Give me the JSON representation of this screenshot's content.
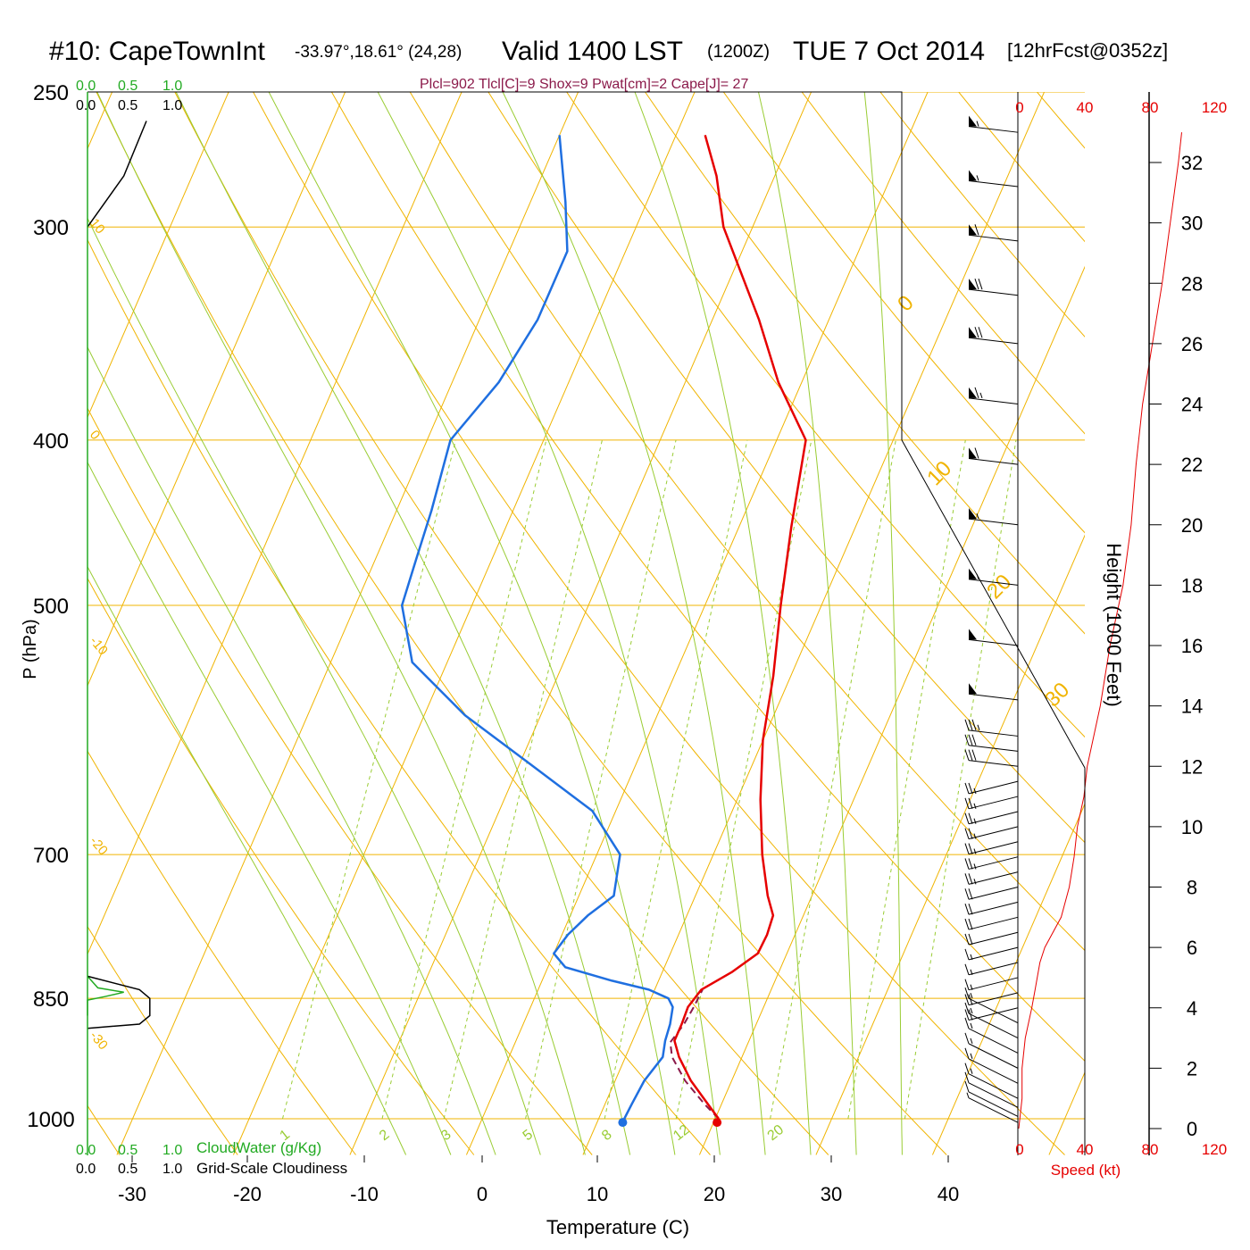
{
  "header": {
    "station": "#10: CapeTownInt",
    "coords": "-33.97°,18.61° (24,28)",
    "valid": "Valid 1400 LST",
    "utc": "(1200Z)",
    "date": "TUE 7 Oct 2014",
    "forecast": "[12hrFcst@0352z]",
    "indices": "Plcl=902 Tlcl[C]=9 Shox=9 Pwat[cm]=2 Cape[J]= 27"
  },
  "colors": {
    "temperature": "#e60000",
    "dewpoint": "#1f6fe0",
    "parcel": "#8b1a4a",
    "isobar": "#f0b400",
    "mixing_ratio": "#99cc33",
    "cloudwater": "#22aa22",
    "wind_speed": "#e60000"
  },
  "axes": {
    "x_label": "Temperature (C)",
    "y_label": "P (hPa)",
    "right_label": "Height (1000 Feet)",
    "speed_label": "Speed (kt)",
    "x_ticks": [
      "-30",
      "-20",
      "-10",
      "0",
      "10",
      "20",
      "30",
      "40"
    ],
    "p_ticks": [
      "250",
      "300",
      "400",
      "500",
      "700",
      "850",
      "1000"
    ],
    "height_ticks": [
      "32",
      "30",
      "28",
      "26",
      "24",
      "22",
      "20",
      "18",
      "16",
      "14",
      "12",
      "10",
      "8",
      "6",
      "4",
      "2",
      "0"
    ],
    "speed_ticks": [
      "0",
      "40",
      "80",
      "120"
    ]
  },
  "side_panel": {
    "cw_scale": [
      "0.0",
      "0.5",
      "1.0"
    ],
    "cloud_scale": [
      "0.0",
      "0.5",
      "1.0"
    ],
    "cw_label": "CloudWater (g/Kg)",
    "cloud_label": "Grid-Scale Cloudiness"
  },
  "isotherm_labels": [
    "10",
    "0",
    "-10",
    "-20",
    "-30"
  ],
  "adiabat_labels": [
    "0",
    "10",
    "20",
    "30"
  ],
  "mixing_labels": [
    "1",
    "2",
    "3",
    "5",
    "8",
    "12",
    "20"
  ],
  "chart_data": {
    "type": "line",
    "title": "#10: CapeTownInt Valid 1400 LST (1200Z) TUE 7 Oct 2014",
    "xlabel": "Temperature (C)",
    "ylabel": "P (hPa)",
    "xlim": [
      -34,
      46
    ],
    "ylim": [
      1030,
      250
    ],
    "series": [
      {
        "name": "Temperature",
        "points": [
          [
            1000,
            20.3
          ],
          [
            980,
            18.8
          ],
          [
            950,
            16.5
          ],
          [
            920,
            14.6
          ],
          [
            900,
            13.6
          ],
          [
            880,
            13.6
          ],
          [
            860,
            13.5
          ],
          [
            840,
            14.0
          ],
          [
            820,
            16.0
          ],
          [
            800,
            17.5
          ],
          [
            780,
            17.6
          ],
          [
            760,
            17.4
          ],
          [
            740,
            16.2
          ],
          [
            700,
            14.2
          ],
          [
            650,
            12.0
          ],
          [
            600,
            10.0
          ],
          [
            550,
            8.5
          ],
          [
            500,
            6.5
          ],
          [
            450,
            4.5
          ],
          [
            400,
            2.5
          ],
          [
            370,
            -2.0
          ],
          [
            340,
            -6.0
          ],
          [
            300,
            -12.5
          ],
          [
            280,
            -15.0
          ],
          [
            265,
            -17.5
          ]
        ]
      },
      {
        "name": "Dewpoint",
        "points": [
          [
            1000,
            12.2
          ],
          [
            980,
            12.3
          ],
          [
            950,
            12.5
          ],
          [
            920,
            13.2
          ],
          [
            900,
            12.8
          ],
          [
            880,
            12.6
          ],
          [
            860,
            12.2
          ],
          [
            850,
            11.5
          ],
          [
            840,
            9.5
          ],
          [
            830,
            6.0
          ],
          [
            815,
            1.5
          ],
          [
            800,
            0.0
          ],
          [
            780,
            0.5
          ],
          [
            760,
            1.5
          ],
          [
            740,
            3.0
          ],
          [
            700,
            2.0
          ],
          [
            660,
            -2.0
          ],
          [
            620,
            -9.0
          ],
          [
            580,
            -16.5
          ],
          [
            540,
            -23.0
          ],
          [
            500,
            -26.0
          ],
          [
            470,
            -26.5
          ],
          [
            440,
            -27.0
          ],
          [
            400,
            -28.0
          ],
          [
            370,
            -26.0
          ],
          [
            340,
            -25.0
          ],
          [
            310,
            -25.0
          ],
          [
            290,
            -27.0
          ],
          [
            265,
            -30.0
          ]
        ]
      },
      {
        "name": "Parcel",
        "points": [
          [
            1000,
            20.3
          ],
          [
            980,
            18.5
          ],
          [
            950,
            16.0
          ],
          [
            920,
            14.0
          ],
          [
            902,
            13.3
          ],
          [
            880,
            13.8
          ],
          [
            860,
            14.0
          ],
          [
            840,
            14.1
          ]
        ]
      }
    ],
    "cloud_water": {
      "scale": [
        0.0,
        1.0
      ],
      "points": [
        [
          825,
          0.0
        ],
        [
          838,
          0.12
        ],
        [
          843,
          0.42
        ],
        [
          848,
          0.2
        ],
        [
          852,
          0.0
        ],
        [
          870,
          0.0
        ]
      ]
    },
    "cloudiness": {
      "scale": [
        0.0,
        1.0
      ],
      "points": [
        [
          825,
          0.0
        ],
        [
          840,
          0.6
        ],
        [
          850,
          0.72
        ],
        [
          870,
          0.72
        ],
        [
          880,
          0.6
        ],
        [
          885,
          0.0
        ],
        [
          260,
          0.68
        ],
        [
          280,
          0.42
        ],
        [
          300,
          0.0
        ]
      ]
    },
    "wind_profile": {
      "heights_kft": [
        0.2,
        0.4,
        0.7,
        1.0,
        1.5,
        2.0,
        2.5,
        3.0,
        3.5,
        4.0,
        4.5,
        5.0,
        5.5,
        6.0,
        6.5,
        7.0,
        7.5,
        8.0,
        8.5,
        9.0,
        9.5,
        10.0,
        10.5,
        11.0,
        11.5,
        12.0,
        12.5,
        13.0,
        14.2,
        16.0,
        18.0,
        20.0,
        22.0,
        24.0,
        26.0,
        27.6,
        29.4,
        31.2,
        33.0
      ],
      "speeds_kt": [
        8,
        10,
        12,
        15,
        15,
        15,
        15,
        15,
        15,
        20,
        20,
        15,
        15,
        15,
        20,
        20,
        20,
        20,
        25,
        25,
        25,
        25,
        25,
        25,
        25,
        30,
        30,
        35,
        50,
        50,
        55,
        55,
        60,
        65,
        70,
        70,
        60,
        55,
        55
      ]
    },
    "speed_profile": {
      "points": [
        [
          0.0,
          0
        ],
        [
          1.0,
          2
        ],
        [
          2.0,
          2
        ],
        [
          3.0,
          4
        ],
        [
          4.0,
          8
        ],
        [
          4.6,
          10
        ],
        [
          5.5,
          13
        ],
        [
          6.0,
          16
        ],
        [
          7.0,
          26
        ],
        [
          8.0,
          31
        ],
        [
          9.0,
          34
        ],
        [
          10.0,
          36
        ],
        [
          11.0,
          40
        ],
        [
          12.0,
          42
        ],
        [
          14.0,
          50
        ],
        [
          16.0,
          56
        ],
        [
          18.0,
          64
        ],
        [
          20.0,
          69
        ],
        [
          22.0,
          72
        ],
        [
          24.0,
          76
        ],
        [
          26.0,
          82
        ],
        [
          28.0,
          88
        ],
        [
          30.0,
          93
        ],
        [
          32.0,
          98
        ],
        [
          33.0,
          100
        ]
      ]
    }
  }
}
